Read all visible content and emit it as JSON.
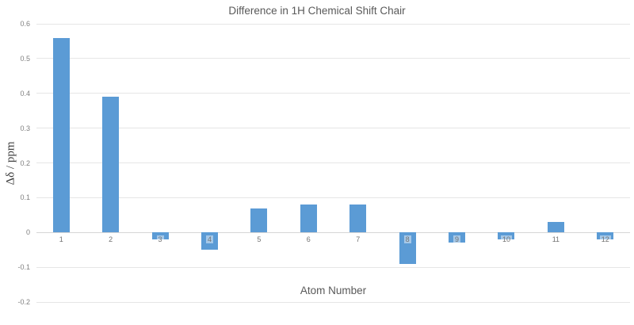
{
  "chart_data": {
    "type": "bar",
    "title": "Difference in 1H Chemical Shift Chair",
    "xlabel": "Atom Number",
    "ylabel": "Δδ / ppm",
    "categories": [
      "1",
      "2",
      "3",
      "4",
      "5",
      "6",
      "7",
      "8",
      "9",
      "10",
      "11",
      "12"
    ],
    "values": [
      0.56,
      0.39,
      -0.02,
      -0.05,
      0.07,
      0.08,
      0.08,
      -0.09,
      -0.03,
      -0.02,
      0.03,
      -0.02
    ],
    "ylim": [
      -0.2,
      0.6
    ],
    "ytick_values": [
      0.6,
      0.5,
      0.4,
      0.3,
      0.2,
      0.1,
      0,
      -0.1,
      -0.2
    ],
    "ytick_labels": [
      "0.6",
      "0.5",
      "0.4",
      "0.3",
      "0.2",
      "0.1",
      "0",
      "-0.1",
      "-0.2"
    ],
    "grid": true,
    "legend": "none",
    "colors": {
      "bar": "#5B9BD5",
      "gridline": "#e6e6e6",
      "axis_line": "#d6d6d6",
      "title_text": "#595959",
      "tick_text": "#7f7f7f",
      "axis_title_text": "#595959"
    }
  }
}
